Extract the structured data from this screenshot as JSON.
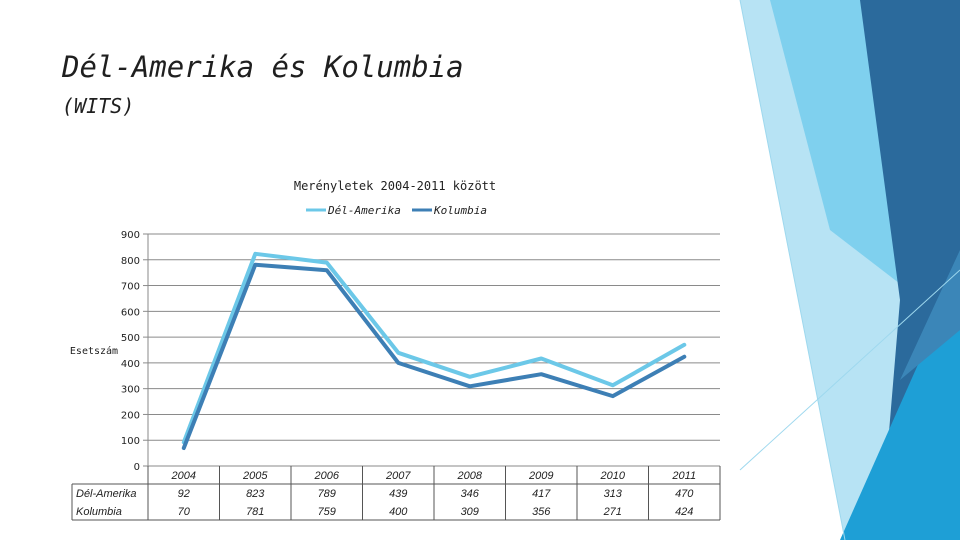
{
  "slide": {
    "title": "Dél-Amerika és Kolumbia",
    "subtitle": "(WITS)"
  },
  "theme": {
    "light_blue": "#6cc8e8",
    "dark_blue": "#3d7fb5",
    "deco_colors": [
      "#2b6a9c",
      "#3b86b8",
      "#1e9fd6",
      "#7fd0ee",
      "#b7e3f4"
    ]
  },
  "chart_data": {
    "type": "line",
    "title": "Merényletek 2004-2011 között",
    "ylabel": "Esetszám",
    "xlabel": "",
    "categories": [
      "2004",
      "2005",
      "2006",
      "2007",
      "2008",
      "2009",
      "2010",
      "2011"
    ],
    "series": [
      {
        "name": "Dél-Amerika",
        "values": [
          92,
          823,
          789,
          439,
          346,
          417,
          313,
          470
        ],
        "color": "#6cc8e8"
      },
      {
        "name": "Kolumbia",
        "values": [
          70,
          781,
          759,
          400,
          309,
          356,
          271,
          424
        ],
        "color": "#3d7fb5"
      }
    ],
    "ylim": [
      0,
      900
    ],
    "yticks": [
      "0",
      "100",
      "200",
      "300",
      "400",
      "500",
      "600",
      "700",
      "800",
      "900"
    ],
    "grid": true,
    "legend": "top",
    "data_table": true
  }
}
